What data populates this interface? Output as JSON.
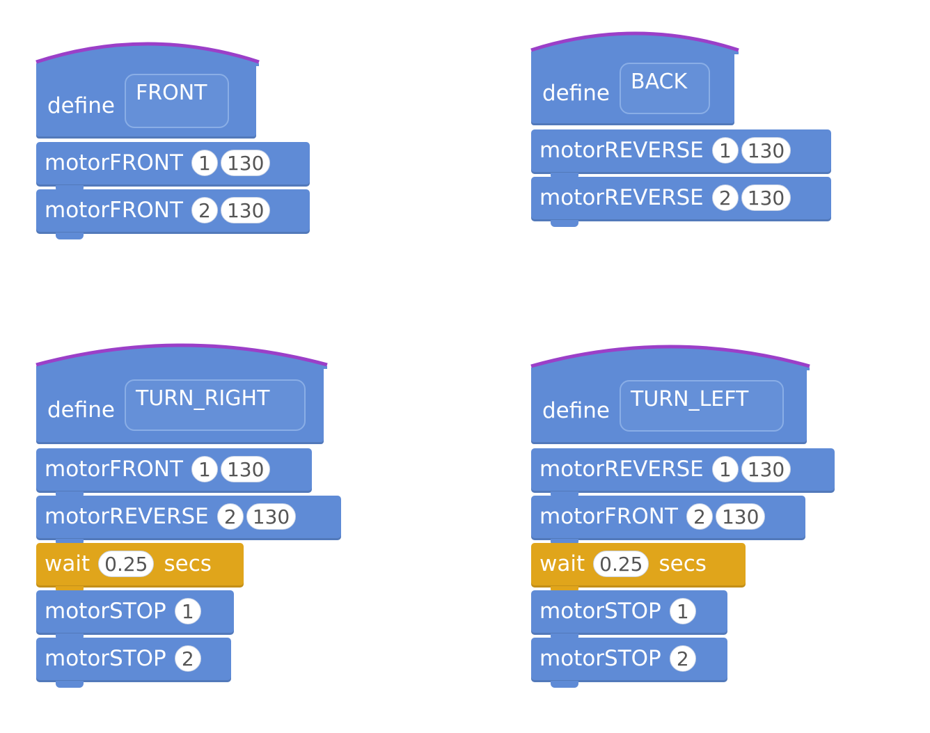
{
  "scripts": {
    "front": {
      "define": "define",
      "name": "FRONT",
      "blocks": [
        {
          "label": "motorFRONT",
          "arg1": "1",
          "arg2": "130"
        },
        {
          "label": "motorFRONT",
          "arg1": "2",
          "arg2": "130"
        }
      ]
    },
    "back": {
      "define": "define",
      "name": "BACK",
      "blocks": [
        {
          "label": "motorREVERSE",
          "arg1": "1",
          "arg2": "130"
        },
        {
          "label": "motorREVERSE",
          "arg1": "2",
          "arg2": "130"
        }
      ]
    },
    "turn_right": {
      "define": "define",
      "name": "TURN_RIGHT",
      "blocks": [
        {
          "label": "motorFRONT",
          "arg1": "1",
          "arg2": "130"
        },
        {
          "label": "motorREVERSE",
          "arg1": "2",
          "arg2": "130"
        },
        {
          "label": "wait",
          "arg1": "0.25",
          "suffix": "secs"
        },
        {
          "label": "motorSTOP",
          "arg1": "1"
        },
        {
          "label": "motorSTOP",
          "arg1": "2"
        }
      ]
    },
    "turn_left": {
      "define": "define",
      "name": "TURN_LEFT",
      "blocks": [
        {
          "label": "motorREVERSE",
          "arg1": "1",
          "arg2": "130"
        },
        {
          "label": "motorFRONT",
          "arg1": "2",
          "arg2": "130"
        },
        {
          "label": "wait",
          "arg1": "0.25",
          "suffix": "secs"
        },
        {
          "label": "motorSTOP",
          "arg1": "1"
        },
        {
          "label": "motorSTOP",
          "arg1": "2"
        }
      ]
    }
  },
  "colors": {
    "motion_block": "#5f8bd6",
    "control_block": "#e0a51b",
    "hat_accent": "#9b3fc8"
  }
}
